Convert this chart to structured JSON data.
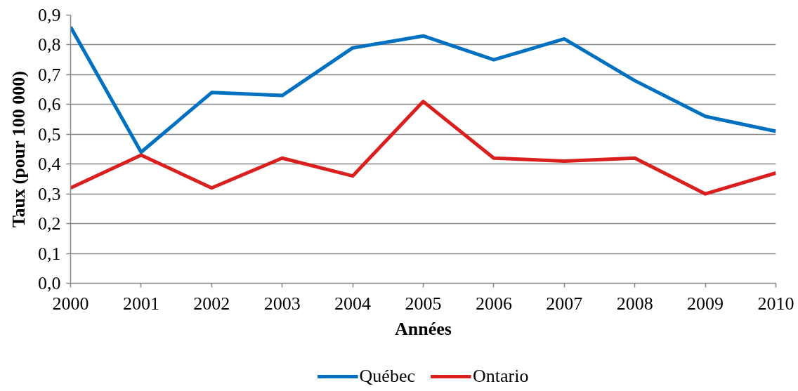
{
  "chart_data": {
    "type": "line",
    "xlabel": "Années",
    "ylabel": "Taux (pour 100 000)",
    "x": [
      2000,
      2001,
      2002,
      2003,
      2004,
      2005,
      2006,
      2007,
      2008,
      2009,
      2010
    ],
    "series": [
      {
        "name": "Québec",
        "color": "#0070c0",
        "values": [
          0.86,
          0.44,
          0.64,
          0.63,
          0.79,
          0.83,
          0.75,
          0.82,
          0.68,
          0.56,
          0.51
        ]
      },
      {
        "name": "Ontario",
        "color": "#da1f1f",
        "values": [
          0.32,
          0.43,
          0.32,
          0.42,
          0.36,
          0.61,
          0.42,
          0.41,
          0.42,
          0.3,
          0.37
        ]
      }
    ],
    "xlim": [
      2000,
      2010
    ],
    "xticks": [
      2000,
      2001,
      2002,
      2003,
      2004,
      2005,
      2006,
      2007,
      2008,
      2009,
      2010
    ],
    "ylim": [
      0,
      0.9
    ],
    "yticks": [
      {
        "value": 0,
        "label": "0,0"
      },
      {
        "value": 0.1,
        "label": "0,1"
      },
      {
        "value": 0.2,
        "label": "0,2"
      },
      {
        "value": 0.3,
        "label": "0,3"
      },
      {
        "value": 0.4,
        "label": "0,4"
      },
      {
        "value": 0.5,
        "label": "0,5"
      },
      {
        "value": 0.6,
        "label": "0,6"
      },
      {
        "value": 0.7,
        "label": "0,7"
      },
      {
        "value": 0.8,
        "label": "0,8"
      },
      {
        "value": 0.9,
        "label": "0,9"
      }
    ],
    "grid": "y",
    "legend": "bottom",
    "line_style": "solid"
  }
}
